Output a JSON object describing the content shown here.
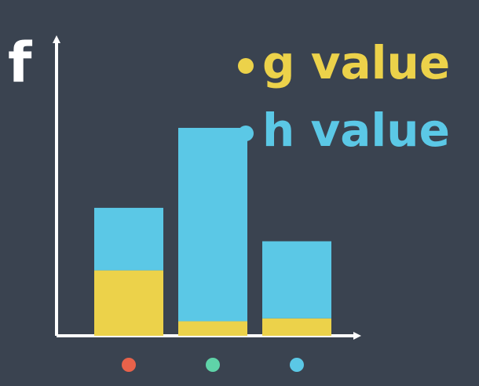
{
  "chart_data": {
    "type": "bar",
    "stacked": true,
    "ylabel": "f",
    "categories": [
      "",
      "",
      ""
    ],
    "category_markers": [
      {
        "color": "#e8624a"
      },
      {
        "color": "#5fd3a8"
      },
      {
        "color": "#5bc8e6"
      }
    ],
    "series": [
      {
        "name": "g value",
        "color": "#ecd24a",
        "values": [
          45,
          10,
          12
        ]
      },
      {
        "name": "h value",
        "color": "#5bc8e6",
        "values": [
          43,
          133,
          53
        ]
      }
    ],
    "ylim": [
      0,
      150
    ],
    "grid": false,
    "legend": "top-right"
  }
}
